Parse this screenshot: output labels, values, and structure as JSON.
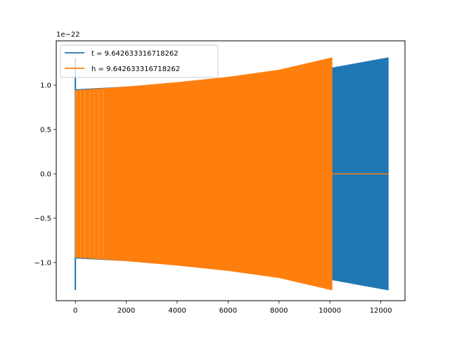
{
  "chart_data": {
    "type": "line",
    "title": "",
    "xlabel": "",
    "ylabel": "",
    "offset_label": "1e−22",
    "xlim": [
      -750,
      12950
    ],
    "ylim": [
      -1.43,
      1.5
    ],
    "x_ticks": [
      0,
      2000,
      4000,
      6000,
      8000,
      10000,
      12000
    ],
    "x_tick_labels": [
      "0",
      "2000",
      "4000",
      "6000",
      "8000",
      "10000",
      "12000"
    ],
    "y_ticks": [
      -1.0,
      -0.5,
      0.0,
      0.5,
      1.0
    ],
    "y_tick_labels": [
      "−1.0",
      "−0.5",
      "0.0",
      "0.5",
      "1.0"
    ],
    "grid": false,
    "legend_position": "upper-left",
    "series": [
      {
        "name": "t = 9.642633316718262",
        "color": "#1f77b4",
        "envelope": {
          "x": [
            0,
            2000,
            4000,
            6000,
            8000,
            10000,
            12300
          ],
          "amplitude": [
            0.95,
            0.98,
            1.02,
            1.07,
            1.13,
            1.19,
            1.31
          ]
        },
        "initial_spike": 1.31,
        "x_end": 12300
      },
      {
        "name": "h = 9.642633316718262",
        "color": "#ff7f0e",
        "envelope": {
          "x": [
            0,
            2000,
            4000,
            6000,
            8000,
            10100
          ],
          "amplitude": [
            0.94,
            0.98,
            1.03,
            1.09,
            1.17,
            1.31
          ]
        },
        "zero_tail": [
          10100,
          12300
        ],
        "x_end": 10100
      }
    ]
  }
}
